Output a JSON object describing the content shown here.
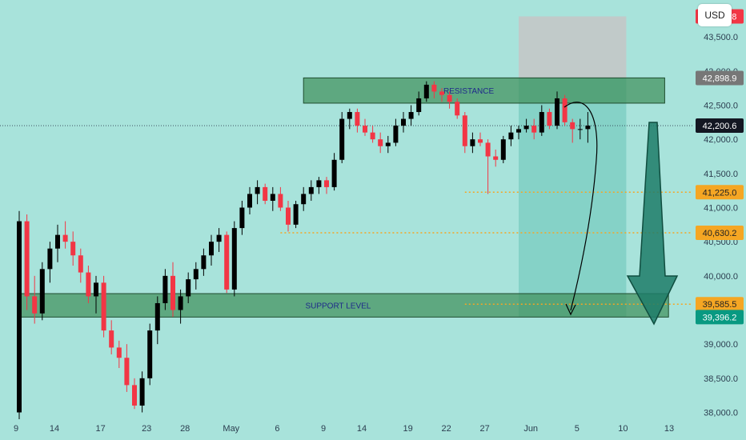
{
  "currency_button": {
    "label": "USD"
  },
  "zones": {
    "resistance": {
      "label": "RESISTANCE",
      "low": 42530,
      "high": 42900
    },
    "support": {
      "label": "SUPPORT LEVEL",
      "low": 39396.2,
      "high": 39740
    }
  },
  "price_badges": [
    {
      "name": "badge-43800",
      "value": 43800.8,
      "text": "43,800.8",
      "bg": "#f23645",
      "fg": "#ffffff"
    },
    {
      "name": "badge-42898",
      "value": 42898.9,
      "text": "42,898.9",
      "bg": "#777777",
      "fg": "#ffffff"
    },
    {
      "name": "badge-42200",
      "value": 42200.6,
      "text": "42,200.6",
      "bg": "#131722",
      "fg": "#ffffff"
    },
    {
      "name": "badge-41225",
      "value": 41225.0,
      "text": "41,225.0",
      "bg": "#f5a623",
      "fg": "#222222"
    },
    {
      "name": "badge-40630",
      "value": 40630.2,
      "text": "40,630.2",
      "bg": "#f5a623",
      "fg": "#222222"
    },
    {
      "name": "badge-39585",
      "value": 39585.5,
      "text": "39,585.5",
      "bg": "#f5a623",
      "fg": "#222222"
    },
    {
      "name": "badge-39396",
      "value": 39396.2,
      "text": "39,396.2",
      "bg": "#089981",
      "fg": "#ffffff"
    }
  ],
  "colors": {
    "up": "#000000",
    "down": "#f23645",
    "background": "#a8e3db",
    "zone": "#3e8e5a",
    "target_zone": "#7fcfc3",
    "stop_zone": "#c3c7c6",
    "arrow": "#1e7d68",
    "level_line": "#f5a623"
  },
  "chart_data": {
    "type": "candlestick",
    "title": "",
    "xlabel": "",
    "ylabel": "",
    "ylim": [
      38000,
      44000
    ],
    "grid": false,
    "y_ticks": [
      38000,
      38500,
      39000,
      39500,
      40000,
      40500,
      41000,
      41500,
      42000,
      42500,
      43000,
      43500
    ],
    "y_tick_labels": [
      "38,000.0",
      "38,500.0",
      "39,000.0",
      "",
      "40,000.0",
      "40,500.0",
      "41,000.0",
      "41,500.0",
      "42,000.0",
      "42,500.0",
      "43,000.0",
      "43,500.0"
    ],
    "x_ticks": [
      {
        "index": 0,
        "label": "9"
      },
      {
        "index": 5,
        "label": "14"
      },
      {
        "index": 11,
        "label": "17"
      },
      {
        "index": 17,
        "label": "23"
      },
      {
        "index": 22,
        "label": "28"
      },
      {
        "index": 28,
        "label": "May"
      },
      {
        "index": 34,
        "label": "6"
      },
      {
        "index": 40,
        "label": "9"
      },
      {
        "index": 45,
        "label": "14"
      },
      {
        "index": 51,
        "label": "19"
      },
      {
        "index": 56,
        "label": "22"
      },
      {
        "index": 61,
        "label": "27"
      },
      {
        "index": 67,
        "label": "Jun"
      },
      {
        "index": 73,
        "label": "5"
      },
      {
        "index": 79,
        "label": "10"
      },
      {
        "index": 85,
        "label": "13"
      }
    ],
    "candles": [
      [
        38000,
        40950,
        37900,
        40800
      ],
      [
        40800,
        40900,
        39500,
        39700
      ],
      [
        39700,
        40000,
        39300,
        39450
      ],
      [
        39450,
        40200,
        39350,
        40100
      ],
      [
        40100,
        40500,
        39900,
        40400
      ],
      [
        40400,
        40750,
        40200,
        40600
      ],
      [
        40600,
        40800,
        40400,
        40500
      ],
      [
        40500,
        40650,
        40150,
        40300
      ],
      [
        40300,
        40400,
        39900,
        40050
      ],
      [
        40050,
        40150,
        39600,
        39700
      ],
      [
        39700,
        40000,
        39450,
        39900
      ],
      [
        39900,
        40000,
        39100,
        39200
      ],
      [
        39200,
        39350,
        38850,
        38950
      ],
      [
        38950,
        39050,
        38650,
        38800
      ],
      [
        38800,
        39000,
        38300,
        38400
      ],
      [
        38400,
        38500,
        38050,
        38100
      ],
      [
        38100,
        38600,
        38000,
        38500
      ],
      [
        38500,
        39300,
        38400,
        39200
      ],
      [
        39200,
        39700,
        39000,
        39600
      ],
      [
        39600,
        40100,
        39500,
        40000
      ],
      [
        40000,
        40200,
        39400,
        39500
      ],
      [
        39500,
        39800,
        39300,
        39700
      ],
      [
        39700,
        40050,
        39600,
        39950
      ],
      [
        39950,
        40200,
        39800,
        40100
      ],
      [
        40100,
        40400,
        40000,
        40300
      ],
      [
        40300,
        40600,
        40150,
        40500
      ],
      [
        40500,
        40700,
        40350,
        40600
      ],
      [
        40600,
        40650,
        39750,
        39800
      ],
      [
        39800,
        40800,
        39700,
        40700
      ],
      [
        40700,
        41100,
        40600,
        41000
      ],
      [
        41000,
        41300,
        40900,
        41200
      ],
      [
        41200,
        41400,
        41050,
        41300
      ],
      [
        41300,
        41350,
        41050,
        41100
      ],
      [
        41100,
        41300,
        40950,
        41200
      ],
      [
        41200,
        41300,
        40950,
        41000
      ],
      [
        41000,
        41100,
        40650,
        40750
      ],
      [
        40750,
        41100,
        40700,
        41050
      ],
      [
        41050,
        41300,
        40950,
        41200
      ],
      [
        41200,
        41400,
        41100,
        41300
      ],
      [
        41300,
        41450,
        41200,
        41400
      ],
      [
        41400,
        41450,
        41200,
        41300
      ],
      [
        41300,
        41800,
        41250,
        41700
      ],
      [
        41700,
        42400,
        41650,
        42300
      ],
      [
        42300,
        42450,
        42150,
        42400
      ],
      [
        42400,
        42450,
        42100,
        42200
      ],
      [
        42200,
        42300,
        42050,
        42100
      ],
      [
        42100,
        42200,
        41950,
        42000
      ],
      [
        42000,
        42100,
        41800,
        41900
      ],
      [
        41900,
        42050,
        41800,
        41950
      ],
      [
        41950,
        42300,
        41900,
        42200
      ],
      [
        42200,
        42400,
        42100,
        42300
      ],
      [
        42300,
        42500,
        42200,
        42400
      ],
      [
        42400,
        42700,
        42350,
        42600
      ],
      [
        42600,
        42850,
        42550,
        42800
      ],
      [
        42800,
        42850,
        42600,
        42700
      ],
      [
        42700,
        42750,
        42550,
        42650
      ],
      [
        42650,
        42700,
        42450,
        42550
      ],
      [
        42550,
        42600,
        42300,
        42350
      ],
      [
        42350,
        42400,
        41800,
        41900
      ],
      [
        41900,
        42100,
        41800,
        42000
      ],
      [
        42000,
        42100,
        41900,
        41950
      ],
      [
        41950,
        42000,
        41200,
        41750
      ],
      [
        41750,
        41850,
        41600,
        41700
      ],
      [
        41700,
        42050,
        41650,
        42000
      ],
      [
        42000,
        42200,
        41900,
        42100
      ],
      [
        42100,
        42200,
        42000,
        42150
      ],
      [
        42150,
        42300,
        42100,
        42200
      ],
      [
        42200,
        42300,
        42000,
        42100
      ],
      [
        42100,
        42500,
        42050,
        42400
      ],
      [
        42400,
        42450,
        42150,
        42200
      ],
      [
        42200,
        42700,
        42150,
        42600
      ],
      [
        42600,
        42650,
        42200,
        42250
      ],
      [
        42250,
        42300,
        41950,
        42150
      ],
      [
        42150,
        42300,
        42000,
        42150
      ],
      [
        42150,
        42400,
        41950,
        42200
      ]
    ]
  }
}
